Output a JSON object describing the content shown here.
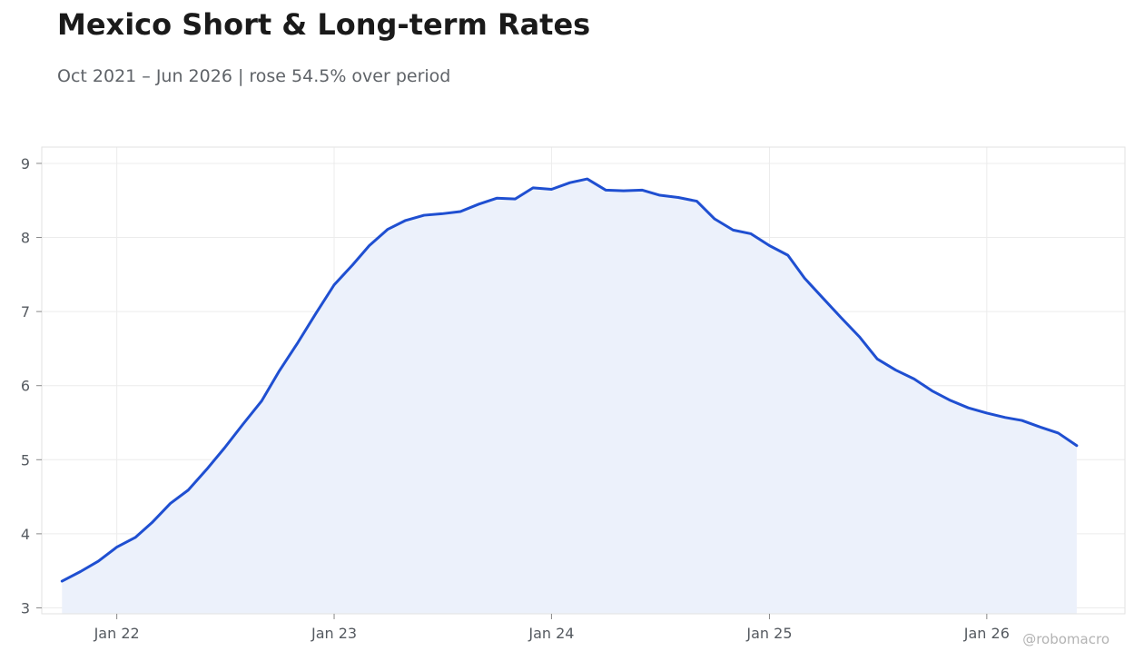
{
  "header": {
    "title": "Mexico Short & Long-term Rates",
    "subtitle": "Oct 2021 – Jun 2026 | rose 54.5% over period"
  },
  "watermark": "@robomacro",
  "colors": {
    "line": "#1f4fd1",
    "fill": "#ecf1fb",
    "grid": "#ececec",
    "frame": "#e2e2e2"
  },
  "chart_data": {
    "type": "area",
    "title": "Mexico Short & Long-term Rates",
    "subtitle": "Oct 2021 – Jun 2026 | rose 54.5% over period",
    "xlabel": "",
    "ylabel": "",
    "x_ticks": [
      {
        "label": "Jan 22",
        "date": "2022-01-01"
      },
      {
        "label": "Jan 23",
        "date": "2023-01-01"
      },
      {
        "label": "Jan 24",
        "date": "2024-01-01"
      },
      {
        "label": "Jan 25",
        "date": "2025-01-01"
      },
      {
        "label": "Jan 26",
        "date": "2026-01-01"
      }
    ],
    "y_ticks": [
      3,
      4,
      5,
      6,
      7,
      8,
      9
    ],
    "xlim": [
      "2021-08-28",
      "2026-08-21"
    ],
    "ylim": [
      2.92,
      9.22
    ],
    "grid": true,
    "legend": "none",
    "series": [
      {
        "x": [
          "2021-10-01",
          "2021-11-01",
          "2021-12-01",
          "2022-01-01",
          "2022-02-01",
          "2022-03-01",
          "2022-04-01",
          "2022-05-01",
          "2022-06-01",
          "2022-07-01",
          "2022-08-01",
          "2022-09-01",
          "2022-10-01",
          "2022-11-01",
          "2022-12-01",
          "2023-01-01",
          "2023-02-01",
          "2023-03-01",
          "2023-04-01",
          "2023-05-01",
          "2023-06-01",
          "2023-07-01",
          "2023-08-01",
          "2023-09-01",
          "2023-10-01",
          "2023-11-01",
          "2023-12-01",
          "2024-01-01",
          "2024-02-01",
          "2024-03-01",
          "2024-04-01",
          "2024-05-01",
          "2024-06-01",
          "2024-07-01",
          "2024-08-01",
          "2024-09-01",
          "2024-10-01",
          "2024-11-01",
          "2024-12-01",
          "2025-01-01",
          "2025-02-01",
          "2025-03-01",
          "2025-04-01",
          "2025-05-01",
          "2025-06-01",
          "2025-07-01",
          "2025-08-01",
          "2025-09-01",
          "2025-10-01",
          "2025-11-01",
          "2025-12-01",
          "2026-01-01",
          "2026-02-01",
          "2026-03-01",
          "2026-04-01",
          "2026-05-01",
          "2026-06-01"
        ],
        "values": [
          3.36,
          3.49,
          3.63,
          3.82,
          3.95,
          4.15,
          4.41,
          4.59,
          4.87,
          5.16,
          5.48,
          5.79,
          6.2,
          6.58,
          6.97,
          7.36,
          7.63,
          7.89,
          8.11,
          8.23,
          8.3,
          8.32,
          8.35,
          8.45,
          8.53,
          8.52,
          8.67,
          8.65,
          8.74,
          8.79,
          8.64,
          8.63,
          8.64,
          8.57,
          8.54,
          8.49,
          8.25,
          8.1,
          8.05,
          7.89,
          7.76,
          7.45,
          7.18,
          6.92,
          6.66,
          6.36,
          6.21,
          6.09,
          5.93,
          5.8,
          5.7,
          5.63,
          5.57,
          5.53,
          5.44,
          5.36,
          5.19
        ]
      }
    ]
  }
}
